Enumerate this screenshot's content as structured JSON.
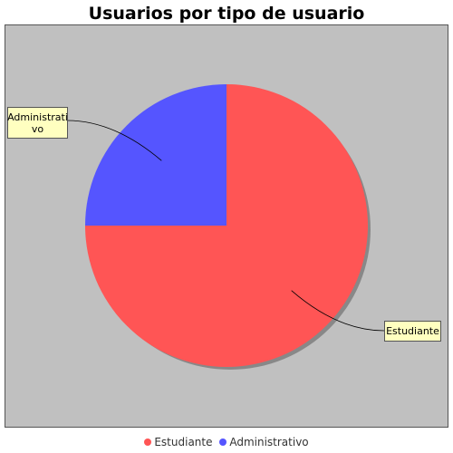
{
  "chart_data": {
    "type": "pie",
    "title": "Usuarios por tipo de usuario",
    "categories": [
      "Estudiante",
      "Administrativo"
    ],
    "values": [
      75,
      25
    ],
    "colors": [
      "#ff5555",
      "#5555ff"
    ],
    "labels": [
      {
        "lines": [
          "Estudiante"
        ]
      },
      {
        "lines": [
          "Administrati",
          "vo"
        ]
      }
    ],
    "legend": {
      "position": "bottom",
      "entries": [
        "Estudiante",
        "Administrativo"
      ]
    },
    "background_color": "#c0c0c0",
    "label_box_color": "#ffffc0"
  }
}
